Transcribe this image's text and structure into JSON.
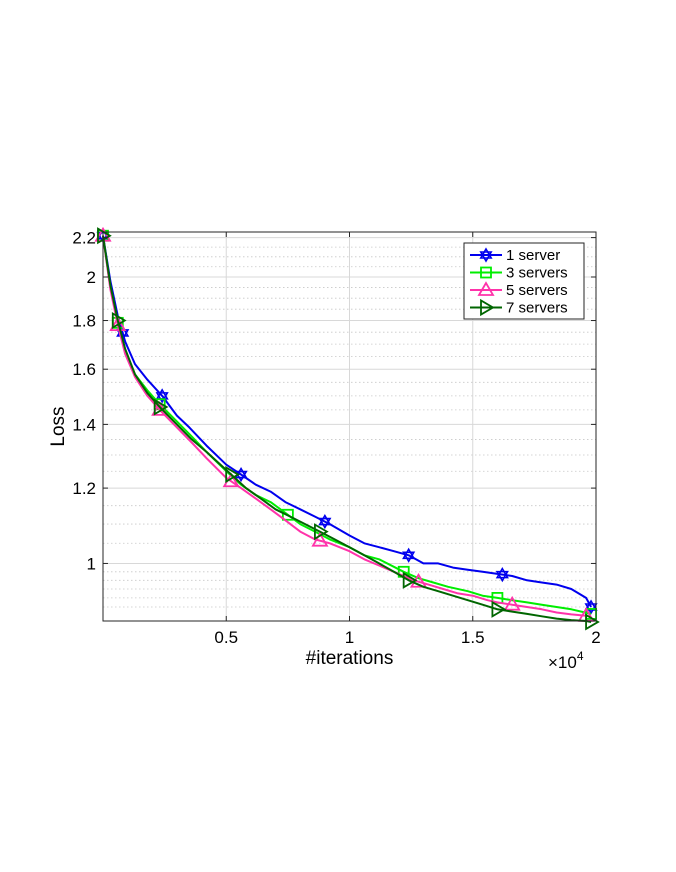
{
  "chart_data": {
    "type": "line",
    "xlabel": "#iterations",
    "ylabel": "Loss",
    "x_multiplier_label": "×10",
    "x_multiplier_exp": "4",
    "xlim": [
      0,
      20000
    ],
    "ylim": [
      0.87,
      2.23
    ],
    "y_scale": "log",
    "grid": true,
    "legend_position": "top-right",
    "x_ticks": [
      {
        "v": 5000,
        "label": "0.5"
      },
      {
        "v": 10000,
        "label": "1"
      },
      {
        "v": 15000,
        "label": "1.5"
      },
      {
        "v": 20000,
        "label": "2"
      }
    ],
    "y_ticks": [
      {
        "v": 1.0,
        "label": "1"
      },
      {
        "v": 1.2,
        "label": "1.2"
      },
      {
        "v": 1.4,
        "label": "1.4"
      },
      {
        "v": 1.6,
        "label": "1.6"
      },
      {
        "v": 1.8,
        "label": "1.8"
      },
      {
        "v": 2.0,
        "label": "2"
      },
      {
        "v": 2.2,
        "label": "2.2"
      }
    ],
    "y_minor_ticks": [
      0.9,
      0.92,
      0.94,
      0.96,
      0.98,
      1.05,
      1.1,
      1.15,
      1.25,
      1.3,
      1.35,
      1.45,
      1.5,
      1.55,
      1.65,
      1.7,
      1.75,
      1.85,
      1.9,
      1.95,
      2.05,
      2.1,
      2.15
    ],
    "series": [
      {
        "name": "1 server",
        "color": "#0000ee",
        "marker": "hexagram",
        "x": [
          0,
          300,
          600,
          900,
          1300,
          1800,
          2400,
          3000,
          3500,
          4200,
          5000,
          5600,
          6200,
          6800,
          7400,
          8000,
          8600,
          9200,
          10000,
          10600,
          11200,
          11800,
          12400,
          13000,
          13600,
          14200,
          14800,
          15400,
          16000,
          16600,
          17200,
          17800,
          18400,
          19000,
          19600,
          19800
        ],
        "y": [
          2.21,
          1.98,
          1.82,
          1.71,
          1.62,
          1.56,
          1.5,
          1.43,
          1.39,
          1.33,
          1.27,
          1.24,
          1.21,
          1.19,
          1.16,
          1.14,
          1.12,
          1.1,
          1.07,
          1.05,
          1.04,
          1.03,
          1.02,
          1.0,
          1.0,
          0.99,
          0.985,
          0.98,
          0.975,
          0.97,
          0.96,
          0.955,
          0.95,
          0.94,
          0.92,
          0.9
        ]
      },
      {
        "name": "3 servers",
        "color": "#00ee00",
        "marker": "square",
        "x": [
          0,
          300,
          600,
          900,
          1300,
          1800,
          2300,
          3000,
          3600,
          4200,
          5000,
          5600,
          6200,
          6800,
          7400,
          8000,
          8600,
          9200,
          10000,
          10600,
          11200,
          12200,
          12800,
          13400,
          14000,
          14800,
          15400,
          16000,
          16600,
          17200,
          17800,
          18400,
          19000,
          19800
        ],
        "y": [
          2.21,
          1.95,
          1.79,
          1.67,
          1.58,
          1.52,
          1.47,
          1.41,
          1.36,
          1.31,
          1.25,
          1.21,
          1.18,
          1.16,
          1.13,
          1.1,
          1.08,
          1.06,
          1.04,
          1.02,
          1.01,
          0.98,
          0.965,
          0.955,
          0.945,
          0.935,
          0.925,
          0.92,
          0.915,
          0.91,
          0.905,
          0.9,
          0.895,
          0.885
        ]
      },
      {
        "name": "5 servers",
        "color": "#ff33aa",
        "marker": "triangle",
        "x": [
          0,
          300,
          600,
          900,
          1300,
          1800,
          2300,
          3000,
          3600,
          4200,
          5000,
          5600,
          6200,
          6800,
          7400,
          8000,
          8600,
          9200,
          10000,
          10600,
          11200,
          11800,
          12600,
          13200,
          13800,
          14400,
          15000,
          15600,
          16000,
          16600,
          17200,
          17800,
          18400,
          19000,
          19600,
          19800
        ],
        "y": [
          2.21,
          1.94,
          1.78,
          1.66,
          1.57,
          1.5,
          1.45,
          1.39,
          1.34,
          1.29,
          1.23,
          1.2,
          1.17,
          1.14,
          1.11,
          1.08,
          1.06,
          1.05,
          1.03,
          1.01,
          0.995,
          0.98,
          0.96,
          0.95,
          0.94,
          0.93,
          0.925,
          0.915,
          0.91,
          0.905,
          0.9,
          0.895,
          0.888,
          0.884,
          0.881,
          0.878
        ]
      },
      {
        "name": "7 servers",
        "color": "#006600",
        "marker": "triangle-right",
        "x": [
          0,
          300,
          600,
          900,
          1300,
          1800,
          2300,
          3000,
          3600,
          4200,
          5200,
          5800,
          6400,
          7000,
          7600,
          8200,
          8800,
          9400,
          10000,
          10600,
          11200,
          11800,
          12400,
          13000,
          13600,
          14200,
          14800,
          15400,
          16000,
          16600,
          17200,
          17800,
          18400,
          19000,
          19600,
          19800
        ],
        "y": [
          2.21,
          1.96,
          1.8,
          1.68,
          1.58,
          1.51,
          1.46,
          1.4,
          1.35,
          1.31,
          1.24,
          1.2,
          1.17,
          1.14,
          1.12,
          1.1,
          1.08,
          1.06,
          1.04,
          1.02,
          1.0,
          0.98,
          0.96,
          0.945,
          0.935,
          0.925,
          0.915,
          0.905,
          0.895,
          0.89,
          0.885,
          0.88,
          0.875,
          0.872,
          0.87,
          0.868
        ]
      }
    ]
  }
}
